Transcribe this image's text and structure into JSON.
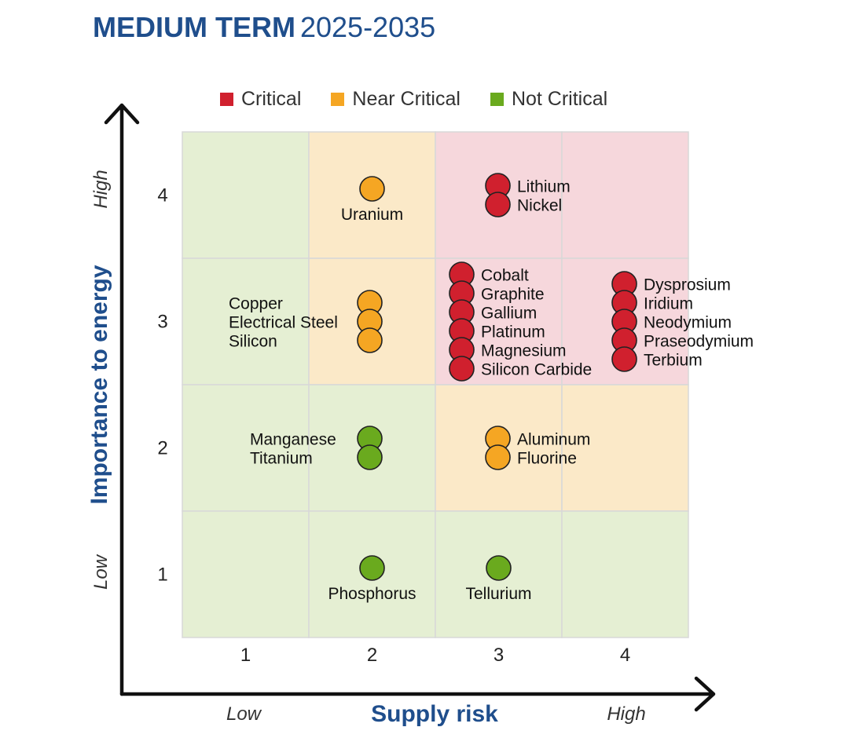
{
  "header": {
    "title_bold": "MEDIUM TERM",
    "title_light": "2025-2035"
  },
  "colors": {
    "critical": "#d0202e",
    "near_critical": "#f5a623",
    "not_critical": "#6aaa1e",
    "zone_green": "#e5efd3",
    "zone_orange": "#fbe9c8",
    "zone_red": "#f6d7dc",
    "axis_title": "#1f4e8c"
  },
  "chart_data": {
    "type": "scatter",
    "title": "MEDIUM TERM 2025-2035",
    "xlabel": "Supply risk",
    "ylabel": "Importance to energy",
    "xlim": [
      0.5,
      4.5
    ],
    "ylim": [
      0.5,
      4.5
    ],
    "x_ticks": [
      "1",
      "2",
      "3",
      "4"
    ],
    "y_ticks": [
      "1",
      "2",
      "3",
      "4"
    ],
    "x_low_label": "Low",
    "x_high_label": "High",
    "y_low_label": "Low",
    "y_high_label": "High",
    "legend": [
      {
        "key": "critical",
        "label": "Critical"
      },
      {
        "key": "near_critical",
        "label": "Near Critical"
      },
      {
        "key": "not_critical",
        "label": "Not Critical"
      }
    ],
    "cell_zones": [
      [
        "not_critical",
        "near_critical",
        "critical",
        "critical"
      ],
      [
        "not_critical",
        "near_critical",
        "critical",
        "critical"
      ],
      [
        "not_critical",
        "not_critical",
        "near_critical",
        "near_critical"
      ],
      [
        "not_critical",
        "not_critical",
        "not_critical",
        "not_critical"
      ]
    ],
    "materials": [
      {
        "name": "Lithium",
        "x": 3,
        "y": 4,
        "category": "critical"
      },
      {
        "name": "Nickel",
        "x": 3,
        "y": 4,
        "category": "critical"
      },
      {
        "name": "Uranium",
        "x": 2,
        "y": 4,
        "category": "near_critical"
      },
      {
        "name": "Copper",
        "x": 2,
        "y": 3,
        "category": "near_critical"
      },
      {
        "name": "Electrical Steel",
        "x": 2,
        "y": 3,
        "category": "near_critical"
      },
      {
        "name": "Silicon",
        "x": 2,
        "y": 3,
        "category": "near_critical"
      },
      {
        "name": "Cobalt",
        "x": 3,
        "y": 3,
        "category": "critical"
      },
      {
        "name": "Graphite",
        "x": 3,
        "y": 3,
        "category": "critical"
      },
      {
        "name": "Gallium",
        "x": 3,
        "y": 3,
        "category": "critical"
      },
      {
        "name": "Platinum",
        "x": 3,
        "y": 3,
        "category": "critical"
      },
      {
        "name": "Magnesium",
        "x": 3,
        "y": 3,
        "category": "critical"
      },
      {
        "name": "Silicon Carbide",
        "x": 3,
        "y": 3,
        "category": "critical"
      },
      {
        "name": "Dysprosium",
        "x": 4,
        "y": 3,
        "category": "critical"
      },
      {
        "name": "Iridium",
        "x": 4,
        "y": 3,
        "category": "critical"
      },
      {
        "name": "Neodymium",
        "x": 4,
        "y": 3,
        "category": "critical"
      },
      {
        "name": "Praseodymium",
        "x": 4,
        "y": 3,
        "category": "critical"
      },
      {
        "name": "Terbium",
        "x": 4,
        "y": 3,
        "category": "critical"
      },
      {
        "name": "Manganese",
        "x": 2,
        "y": 2,
        "category": "not_critical"
      },
      {
        "name": "Titanium",
        "x": 2,
        "y": 2,
        "category": "not_critical"
      },
      {
        "name": "Aluminum",
        "x": 3,
        "y": 2,
        "category": "near_critical"
      },
      {
        "name": "Fluorine",
        "x": 3,
        "y": 2,
        "category": "near_critical"
      },
      {
        "name": "Phosphorus",
        "x": 2,
        "y": 1,
        "category": "not_critical"
      },
      {
        "name": "Tellurium",
        "x": 3,
        "y": 1,
        "category": "not_critical"
      }
    ]
  }
}
